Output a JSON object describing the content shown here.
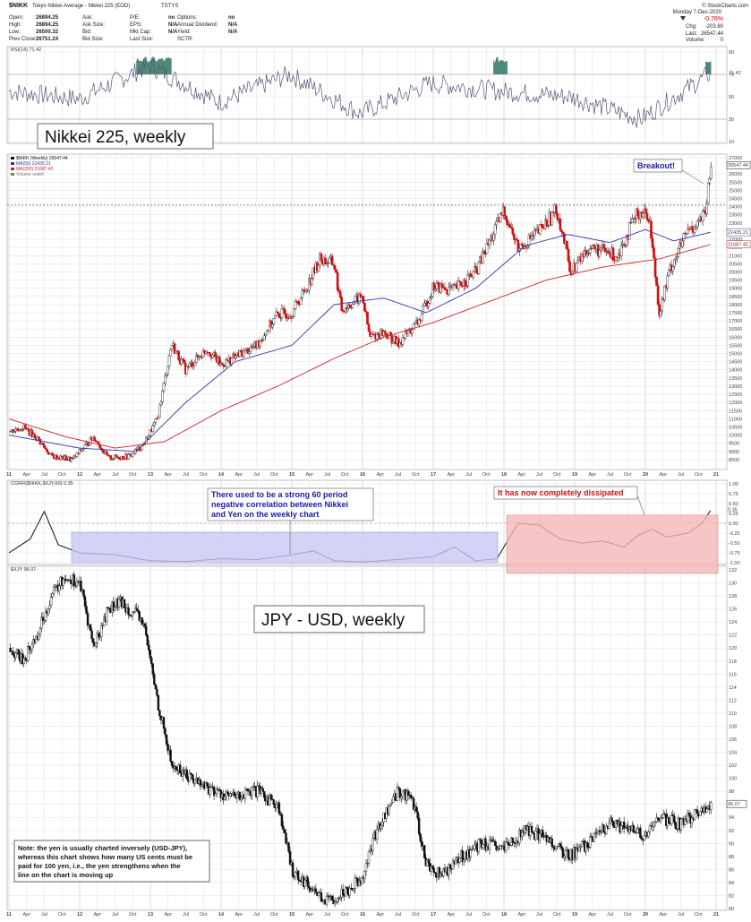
{
  "header": {
    "symbol": "$NIKK",
    "name": "Tokyo Nikkei Average - Nikkei 225 (EOD)",
    "exchange": "TSTYS",
    "brand": "© StockCharts.com",
    "day": "Monday 7-Dec-2020",
    "stats": [
      {
        "label": "Open:",
        "value": "26894.25"
      },
      {
        "label": "High:",
        "value": "26894.25"
      },
      {
        "label": "Low:",
        "value": "26500.32"
      },
      {
        "label": "Prev Close:",
        "value": "26751.24"
      }
    ],
    "stats2": [
      {
        "label": "Ask:",
        "value": ""
      },
      {
        "label": "Ask Size:",
        "value": ""
      },
      {
        "label": "Bid:",
        "value": ""
      },
      {
        "label": "Bid Size:",
        "value": ""
      }
    ],
    "stats3": [
      {
        "label": "P/E:",
        "value": "no"
      },
      {
        "label": "EPS:",
        "value": "N/A"
      },
      {
        "label": "Mkt Cap:",
        "value": "N/A"
      },
      {
        "label": "Last Size:",
        "value": ""
      }
    ],
    "stats4": [
      {
        "label": "Options:",
        "value": "no"
      },
      {
        "label": "Annual Dividend:",
        "value": "N/A"
      },
      {
        "label": "Yield:",
        "value": "N/A"
      },
      {
        "label": "SCTR:",
        "value": ""
      }
    ],
    "change_pct": "-0.76%",
    "change_lbl": "Chg:",
    "change": "-203.80",
    "last_lbl": "Last:",
    "last": "26547.44",
    "vol_lbl": "Volume:",
    "volume": "0"
  },
  "panels": {
    "rsi_label": "RSI(14) 71.42",
    "rsi_value_tag": "71.42",
    "main_title": "Nikkei 225, weekly",
    "main_legend": [
      "$NIKK (Weekly) 26547.44",
      "MA(50) 22435.21",
      "MA(200) 21687.42",
      "Volume undef"
    ],
    "price_tag": "26547.44",
    "ma50_tag": "22435.21",
    "ma200_tag": "21687.42",
    "breakout": "Breakout!",
    "corr_label": "CORR($NIKK,$XJY,60) 0.35",
    "corr_tag": "0.35",
    "corr_note_blue": [
      "There used to be a strong 60 period",
      "negative correlation between Nikkei",
      "and Yen on the weekly chart"
    ],
    "corr_note_red": "It has now completely dissipated",
    "jpy_label": "$XJY 96.07",
    "jpy_title": "JPY - USD, weekly",
    "jpy_tag": "96.07",
    "jpy_note": [
      "Note: the yen is usually charted inversely (USD-JPY),",
      "whereas this chart shows how many US cents must be",
      "paid for 100 yen,  i.e., the yen strengthens when the",
      "line on the chart is moving up"
    ]
  },
  "colors": {
    "price": "#1a1a1a",
    "down_candle": "#d01010",
    "ma50": "#3333aa",
    "ma200": "#cc2222",
    "rsi_fill": "#4d8a7a",
    "corr_blue_box": "#c8c8f4",
    "corr_red_box": "#f4b8b8"
  },
  "chart_data": [
    {
      "type": "line",
      "title": "RSI(14)",
      "ylim": [
        10,
        90
      ],
      "y_ticks": [
        90,
        70,
        50,
        30,
        10
      ],
      "x": [
        "2011",
        "2012",
        "2013",
        "2014",
        "2015",
        "2016",
        "2017",
        "2018",
        "2019",
        "2020",
        "2020-12"
      ],
      "values": [
        55,
        48,
        78,
        45,
        70,
        35,
        62,
        55,
        50,
        30,
        71.42
      ]
    },
    {
      "type": "line",
      "title": "Nikkei 225, weekly",
      "ylim": [
        8000,
        27000
      ],
      "y_ticks": [
        27000,
        26000,
        25500,
        25000,
        24500,
        24000,
        23500,
        23000,
        22500,
        22000,
        21500,
        21000,
        20500,
        20000,
        19500,
        19000,
        18500,
        18000,
        17500,
        17000,
        16500,
        16000,
        15500,
        15000,
        14500,
        14000,
        13500,
        13000,
        12500,
        12000,
        11500,
        11000,
        10500,
        10000,
        9500,
        9000,
        8500
      ],
      "x_ticks": [
        "11",
        "Apr",
        "Jul",
        "Oct",
        "12",
        "Apr",
        "Jul",
        "Oct",
        "13",
        "Apr",
        "Jul",
        "Oct",
        "14",
        "Apr",
        "Jul",
        "Oct",
        "15",
        "Apr",
        "Jul",
        "Oct",
        "16",
        "Apr",
        "Jul",
        "Oct",
        "17",
        "Apr",
        "Jul",
        "Oct",
        "18",
        "Apr",
        "Jul",
        "Oct",
        "19",
        "Apr",
        "Jul",
        "Oct",
        "20",
        "Apr",
        "Jul",
        "Oct",
        "21"
      ],
      "series": [
        {
          "name": "$NIKK",
          "x": [
            2011.0,
            2011.2,
            2011.4,
            2011.6,
            2011.9,
            2012.2,
            2012.4,
            2012.7,
            2012.9,
            2013.1,
            2013.3,
            2013.5,
            2013.8,
            2014.0,
            2014.2,
            2014.5,
            2014.8,
            2015.0,
            2015.2,
            2015.4,
            2015.6,
            2015.7,
            2016.0,
            2016.1,
            2016.3,
            2016.5,
            2016.8,
            2017.0,
            2017.3,
            2017.6,
            2017.9,
            2018.0,
            2018.2,
            2018.5,
            2018.75,
            2018.95,
            2019.2,
            2019.6,
            2019.9,
            2020.05,
            2020.2,
            2020.35,
            2020.6,
            2020.85,
            2020.93
          ],
          "values": [
            10200,
            10500,
            9800,
            8700,
            8500,
            9900,
            8600,
            8700,
            9400,
            11000,
            15600,
            14000,
            15300,
            14300,
            14800,
            15500,
            17400,
            17500,
            19000,
            20800,
            20500,
            17700,
            18500,
            16000,
            16300,
            15600,
            17000,
            19100,
            18900,
            20000,
            22800,
            23800,
            21400,
            22500,
            23800,
            20000,
            21500,
            21000,
            23700,
            23500,
            17500,
            20200,
            22500,
            23500,
            26547.44
          ]
        },
        {
          "name": "MA(50)",
          "x": [
            2011.0,
            2012.0,
            2012.8,
            2013.5,
            2014.2,
            2015.0,
            2015.6,
            2016.3,
            2016.9,
            2017.6,
            2018.3,
            2018.9,
            2019.5,
            2020.0,
            2020.4,
            2020.93
          ],
          "values": [
            10000,
            9200,
            9000,
            12000,
            14500,
            15500,
            18000,
            18400,
            17500,
            19000,
            21600,
            22300,
            21800,
            22600,
            21900,
            22435.21
          ]
        },
        {
          "name": "MA(200)",
          "x": [
            2011.0,
            2011.8,
            2012.5,
            2013.2,
            2014.0,
            2014.8,
            2015.6,
            2016.3,
            2017.0,
            2017.8,
            2018.6,
            2019.4,
            2020.2,
            2020.93
          ],
          "values": [
            11000,
            9900,
            9200,
            9600,
            11500,
            13000,
            14700,
            16000,
            16900,
            18200,
            19500,
            20300,
            20800,
            21687.42
          ]
        }
      ]
    },
    {
      "type": "line",
      "title": "CORR($NIKK,$XJY,60)",
      "ylim": [
        -1.0,
        1.0
      ],
      "y_ticks": [
        1.0,
        0.75,
        0.5,
        0.25,
        0.0,
        -0.25,
        -0.5,
        -0.75,
        -1.0
      ],
      "series": [
        {
          "name": "CORR",
          "x": [
            2011.0,
            2011.3,
            2011.5,
            2011.7,
            2012.0,
            2012.5,
            2013.0,
            2013.5,
            2014.0,
            2014.5,
            2015.0,
            2015.3,
            2015.6,
            2016.0,
            2016.5,
            2017.0,
            2017.3,
            2017.6,
            2017.9,
            2018.2,
            2018.5,
            2018.8,
            2019.1,
            2019.4,
            2019.7,
            2019.9,
            2020.1,
            2020.3,
            2020.6,
            2020.8,
            2020.93
          ],
          "values": [
            -0.75,
            -0.4,
            0.3,
            -0.55,
            -0.75,
            -0.8,
            -0.95,
            -0.97,
            -0.9,
            -0.92,
            -0.8,
            -0.7,
            -0.95,
            -0.98,
            -0.92,
            -0.85,
            -0.6,
            -0.95,
            -0.9,
            0.0,
            -0.05,
            -0.4,
            -0.5,
            -0.45,
            -0.6,
            -0.3,
            -0.15,
            -0.35,
            -0.25,
            0.0,
            0.35
          ]
        }
      ]
    },
    {
      "type": "line",
      "title": "JPY - USD, weekly",
      "ylim": [
        80,
        132
      ],
      "y_ticks": [
        132,
        130,
        128,
        126,
        124,
        122,
        120,
        118,
        116,
        114,
        112,
        110,
        108,
        106,
        104,
        102,
        100,
        98,
        96,
        94,
        92,
        90,
        88,
        86,
        84,
        82,
        80
      ],
      "series": [
        {
          "name": "$XJY",
          "x": [
            2011.0,
            2011.2,
            2011.4,
            2011.6,
            2011.8,
            2012.0,
            2012.2,
            2012.4,
            2012.6,
            2012.9,
            2013.1,
            2013.3,
            2013.6,
            2013.9,
            2014.2,
            2014.5,
            2014.8,
            2015.0,
            2015.3,
            2015.5,
            2015.8,
            2016.0,
            2016.2,
            2016.5,
            2016.7,
            2016.9,
            2017.1,
            2017.4,
            2017.7,
            2018.0,
            2018.3,
            2018.6,
            2018.9,
            2019.2,
            2019.5,
            2019.8,
            2020.0,
            2020.2,
            2020.5,
            2020.8,
            2020.93
          ],
          "values": [
            120,
            118,
            122,
            128,
            131,
            130,
            120,
            126,
            127,
            124,
            112,
            102,
            100,
            98,
            97,
            98,
            96,
            86,
            83,
            81,
            83,
            85,
            92,
            98,
            97,
            87,
            85,
            88,
            90,
            89,
            92,
            91,
            88,
            90,
            93,
            92,
            91,
            94,
            93,
            95,
            96.07
          ]
        }
      ]
    }
  ]
}
